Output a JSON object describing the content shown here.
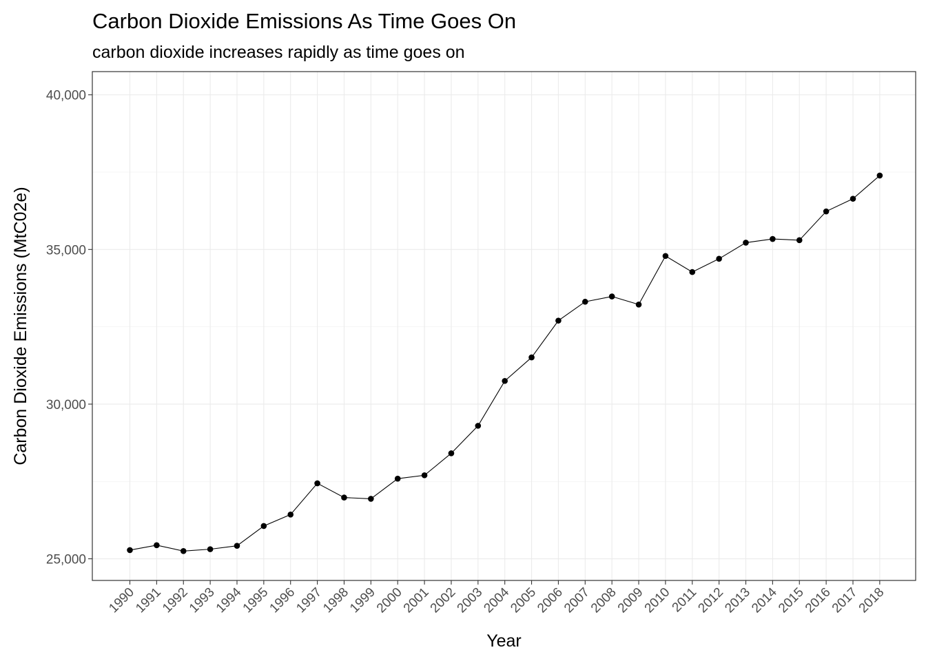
{
  "chart_data": {
    "type": "line",
    "title": "Carbon Dioxide Emissions As Time Goes On",
    "subtitle": "carbon dioxide increases rapidly as time goes on",
    "xlabel": "Year",
    "ylabel": "Carbon Dioxide Emissions (MtC02e)",
    "x": [
      "1990",
      "1991",
      "1992",
      "1993",
      "1994",
      "1995",
      "1996",
      "1997",
      "1998",
      "1999",
      "2000",
      "2001",
      "2002",
      "2003",
      "2004",
      "2005",
      "2006",
      "2007",
      "2008",
      "2009",
      "2010",
      "2011",
      "2012",
      "2013",
      "2014",
      "2015",
      "2016",
      "2017",
      "2018"
    ],
    "y": [
      25280,
      25440,
      25250,
      25310,
      25420,
      26060,
      26430,
      27440,
      26980,
      26940,
      27590,
      27700,
      28410,
      29300,
      30750,
      31510,
      32700,
      33310,
      33480,
      33220,
      34790,
      34270,
      34700,
      35220,
      35340,
      35300,
      36230,
      36640,
      37390
    ],
    "ylim": [
      24300,
      40750
    ],
    "yticks": [
      25000,
      30000,
      35000,
      40000
    ],
    "ytick_labels": [
      "25,000",
      "30,000",
      "35,000",
      "40,000"
    ],
    "grid": true,
    "legend": "none",
    "colors": {
      "line": "#000000",
      "points": "#000000",
      "grid_major": "#ebebeb",
      "grid_minor": "#f2f2f2",
      "panel_border": "#333333",
      "tick_label": "#4d4d4d"
    }
  }
}
